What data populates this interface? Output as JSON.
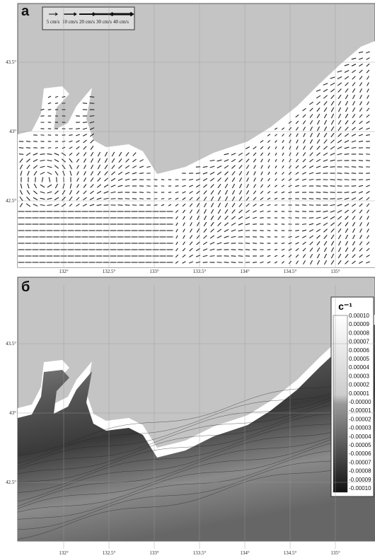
{
  "panel_a": {
    "label": "а",
    "legend": [
      "5 cm/s",
      "10 cm/s",
      "20 cm/s",
      "30 cm/s",
      "40 cm/s"
    ]
  },
  "panel_b": {
    "label": "б",
    "colorbar": {
      "title": "с⁻¹",
      "labels": [
        "0.00010",
        "0.00009",
        "0.00008",
        "0.00007",
        "0.00006",
        "0.00005",
        "0.00004",
        "0.00003",
        "0.00002",
        "0.00001",
        "-0.00000",
        "-0.00001",
        "-0.00002",
        "-0.00003",
        "-0.00004",
        "-0.00005",
        "-0.00006",
        "-0.00007",
        "-0.00008",
        "-0.00009",
        "-0.00010"
      ]
    }
  },
  "axes": {
    "latitudes": [
      "43.5°",
      "43°",
      "42.5°"
    ],
    "longitudes": [
      "132°",
      "132.5°",
      "133°",
      "133.5°",
      "134°",
      "134.5°",
      "135°"
    ]
  }
}
